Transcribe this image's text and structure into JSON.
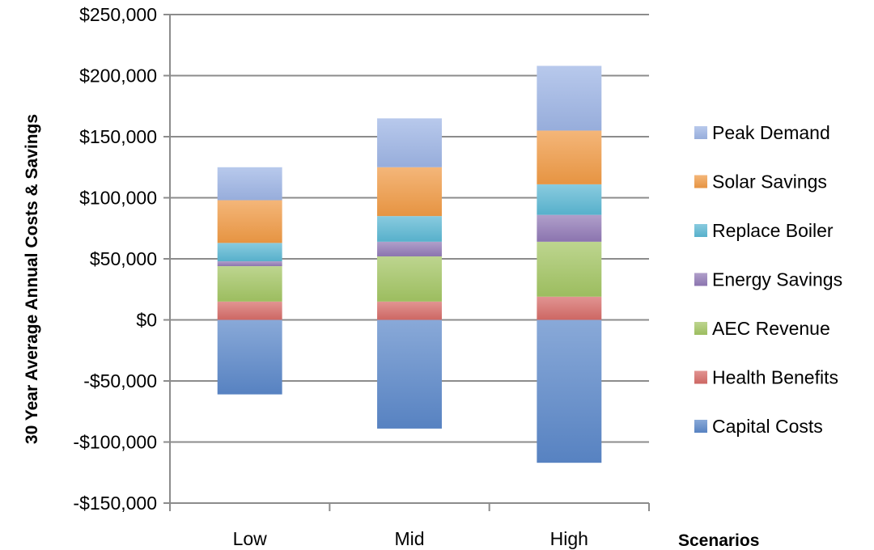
{
  "chart_data": {
    "type": "bar",
    "stacked": true,
    "categories": [
      "Low",
      "Mid",
      "High"
    ],
    "ylabel": "30 Year Average Annual Costs & Savings",
    "xlabel": "Scenarios",
    "ylim": [
      -150000,
      250000
    ],
    "yticks": [
      250000,
      200000,
      150000,
      100000,
      50000,
      0,
      -50000,
      -100000,
      -150000
    ],
    "ytick_labels": [
      "$250,000",
      "$200,000",
      "$150,000",
      "$100,000",
      "$50,000",
      "$0",
      "-$50,000",
      "-$100,000",
      "-$150,000"
    ],
    "grid": "horizontal",
    "legend_position": "right",
    "series": [
      {
        "name": "Capital Costs",
        "color": "#5b87c9",
        "values": [
          -61000,
          -89000,
          -117000
        ]
      },
      {
        "name": "Health Benefits",
        "color": "#d66b67",
        "values": [
          15000,
          15000,
          19000
        ]
      },
      {
        "name": "AEC Revenue",
        "color": "#a3c563",
        "values": [
          29000,
          37000,
          45000
        ]
      },
      {
        "name": "Energy Savings",
        "color": "#9179b6",
        "values": [
          4000,
          12000,
          22000
        ]
      },
      {
        "name": "Replace Boiler",
        "color": "#5bb7d3",
        "values": [
          15000,
          21000,
          25000
        ]
      },
      {
        "name": "Solar Savings",
        "color": "#f09a45",
        "values": [
          35000,
          40000,
          44000
        ]
      },
      {
        "name": "Peak Demand",
        "color": "#9db4e4",
        "values": [
          27000,
          40000,
          53000
        ]
      }
    ]
  }
}
